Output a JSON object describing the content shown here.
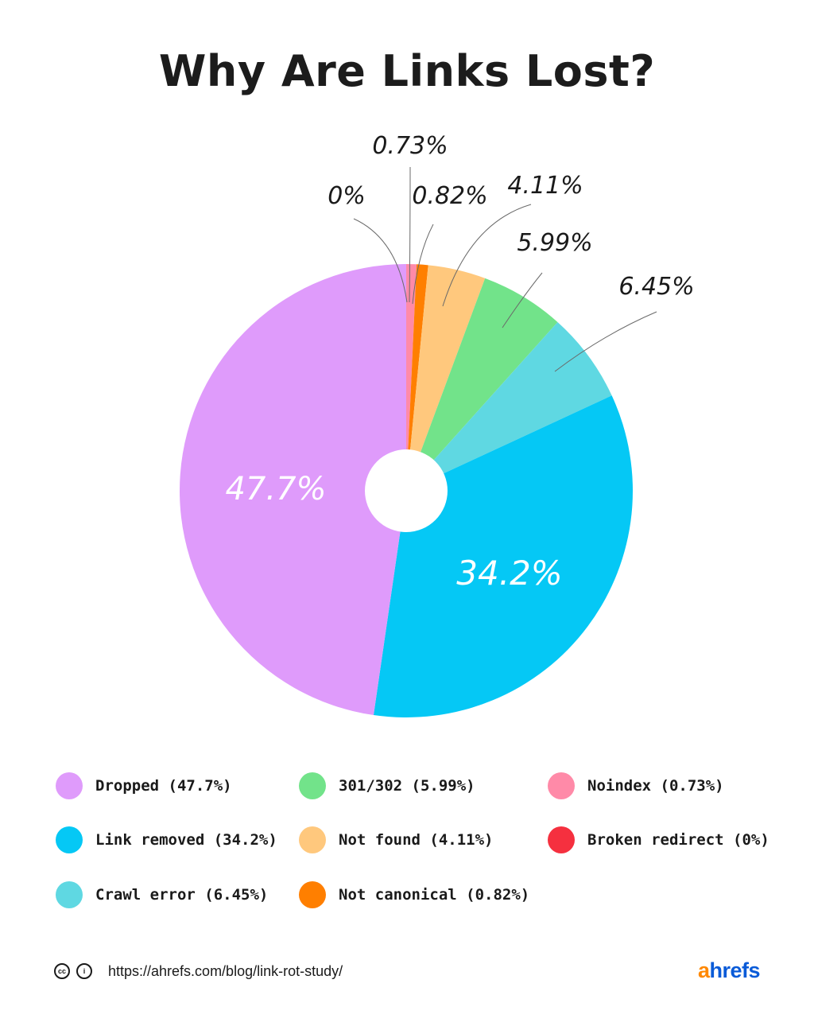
{
  "chart_data": {
    "type": "pie",
    "title": "Why Are Links Lost?",
    "donut": true,
    "slices": [
      {
        "label": "Broken redirect",
        "value": 0,
        "display": "0%",
        "legend": "Broken redirect (0%)",
        "color": "#f5303f"
      },
      {
        "label": "Noindex",
        "value": 0.73,
        "display": "0.73%",
        "legend": "Noindex (0.73%)",
        "color": "#ff8aa8"
      },
      {
        "label": "Not canonical",
        "value": 0.82,
        "display": "0.82%",
        "legend": "Not canonical (0.82%)",
        "color": "#ff7f00"
      },
      {
        "label": "Not found",
        "value": 4.11,
        "display": "4.11%",
        "legend": "Not found (4.11%)",
        "color": "#ffc87d"
      },
      {
        "label": "301/302",
        "value": 5.99,
        "display": "5.99%",
        "legend": "301/302 (5.99%)",
        "color": "#72e38a"
      },
      {
        "label": "Crawl error",
        "value": 6.45,
        "display": "6.45%",
        "legend": "Crawl error (6.45%)",
        "color": "#5fd8e2"
      },
      {
        "label": "Link removed",
        "value": 34.2,
        "display": "34.2%",
        "legend": "Link removed (34.2%)",
        "color": "#05c8f5"
      },
      {
        "label": "Dropped",
        "value": 47.7,
        "display": "47.7%",
        "legend": "Dropped (47.7%)",
        "color": "#df9bfb"
      }
    ],
    "legend_order": [
      "Dropped",
      "Link removed",
      "Crawl error",
      "301/302",
      "Not found",
      "Not canonical",
      "Noindex",
      "Broken redirect"
    ]
  },
  "footer": {
    "license_icons": [
      "cc-icon",
      "attribution-icon"
    ],
    "cc_text": "cc",
    "attribution_text": "i",
    "url": "https://ahrefs.com/blog/link-rot-study/"
  },
  "brand": {
    "a": "a",
    "rest": "hrefs"
  }
}
